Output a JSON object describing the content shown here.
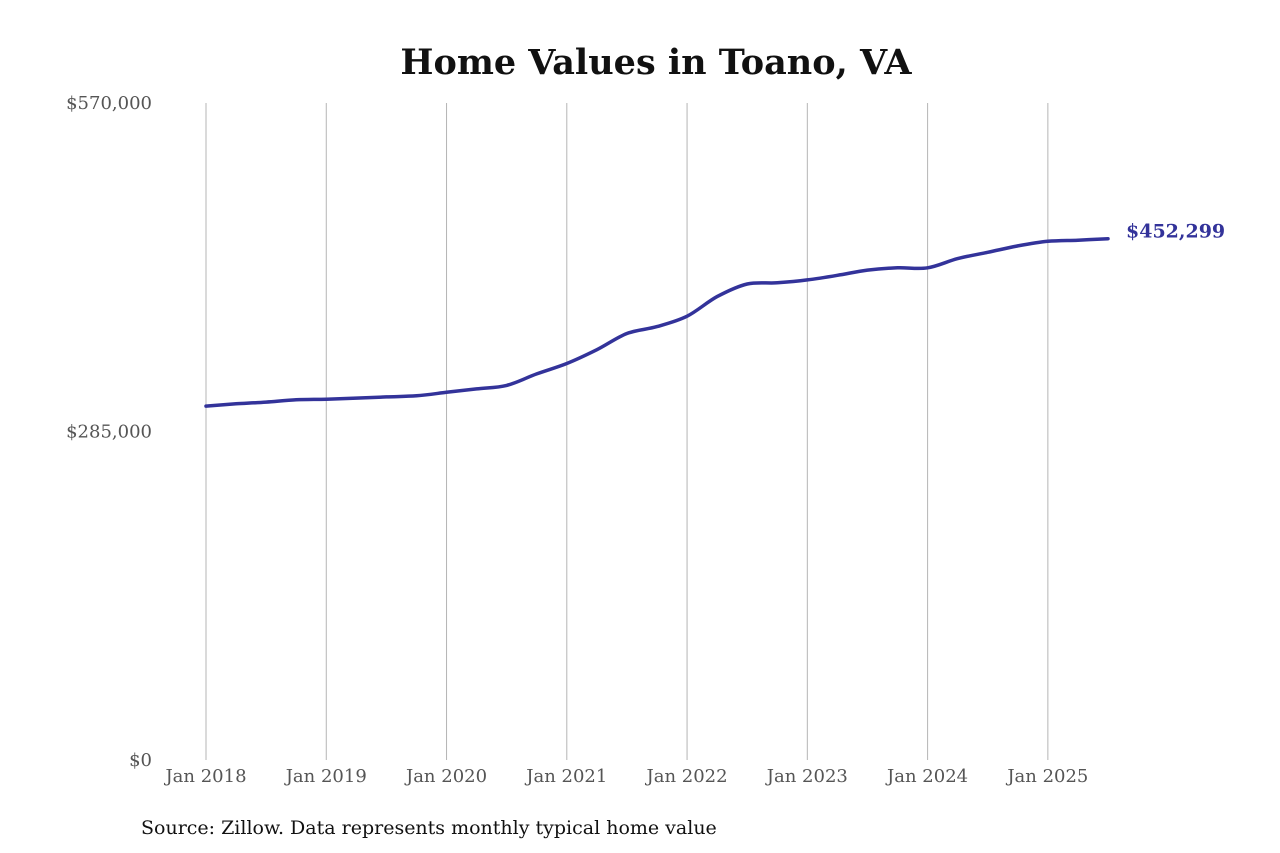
{
  "chart_data": {
    "type": "line",
    "title": "Home Values in Toano, VA",
    "source": "Source: Zillow. Data represents monthly typical home value",
    "xlabel": "",
    "ylabel": "",
    "ylim": [
      0,
      570000
    ],
    "y_ticks": [
      {
        "value": 0,
        "label": "$0"
      },
      {
        "value": 285000,
        "label": "$285,000"
      },
      {
        "value": 570000,
        "label": "$570,000"
      }
    ],
    "x_ticks": [
      {
        "value": "2018-01",
        "label": "Jan 2018"
      },
      {
        "value": "2019-01",
        "label": "Jan 2019"
      },
      {
        "value": "2020-01",
        "label": "Jan 2020"
      },
      {
        "value": "2021-01",
        "label": "Jan 2021"
      },
      {
        "value": "2022-01",
        "label": "Jan 2022"
      },
      {
        "value": "2023-01",
        "label": "Jan 2023"
      },
      {
        "value": "2024-01",
        "label": "Jan 2024"
      },
      {
        "value": "2025-01",
        "label": "Jan 2025"
      }
    ],
    "xlim": [
      "2018-01",
      "2025-07"
    ],
    "grid": {
      "vertical": true,
      "horizontal": false
    },
    "series_color": "#33339a",
    "end_label": "$452,299",
    "series": [
      {
        "points": [
          {
            "x": "2018-01",
            "y": 307000
          },
          {
            "x": "2018-04",
            "y": 309000
          },
          {
            "x": "2018-07",
            "y": 310500
          },
          {
            "x": "2018-10",
            "y": 312500
          },
          {
            "x": "2019-01",
            "y": 313000
          },
          {
            "x": "2019-04",
            "y": 314000
          },
          {
            "x": "2019-07",
            "y": 315000
          },
          {
            "x": "2019-10",
            "y": 316000
          },
          {
            "x": "2020-01",
            "y": 319000
          },
          {
            "x": "2020-04",
            "y": 322000
          },
          {
            "x": "2020-07",
            "y": 325000
          },
          {
            "x": "2020-10",
            "y": 335000
          },
          {
            "x": "2021-01",
            "y": 344000
          },
          {
            "x": "2021-04",
            "y": 356000
          },
          {
            "x": "2021-07",
            "y": 370000
          },
          {
            "x": "2021-10",
            "y": 376000
          },
          {
            "x": "2022-01",
            "y": 385000
          },
          {
            "x": "2022-04",
            "y": 402000
          },
          {
            "x": "2022-07",
            "y": 413000
          },
          {
            "x": "2022-10",
            "y": 414000
          },
          {
            "x": "2023-01",
            "y": 416500
          },
          {
            "x": "2023-04",
            "y": 420500
          },
          {
            "x": "2023-07",
            "y": 425000
          },
          {
            "x": "2023-10",
            "y": 427000
          },
          {
            "x": "2024-01",
            "y": 427000
          },
          {
            "x": "2024-04",
            "y": 435000
          },
          {
            "x": "2024-07",
            "y": 440500
          },
          {
            "x": "2024-10",
            "y": 446000
          },
          {
            "x": "2025-01",
            "y": 450000
          },
          {
            "x": "2025-04",
            "y": 451000
          },
          {
            "x": "2025-07",
            "y": 452299
          }
        ]
      }
    ]
  }
}
